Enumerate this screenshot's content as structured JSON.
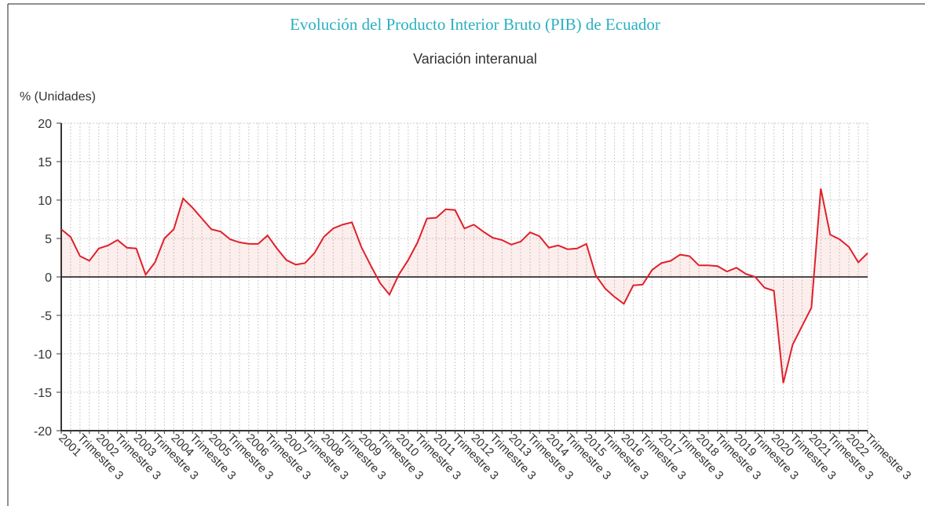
{
  "chart_data": {
    "type": "line",
    "title": "Evolución del Producto Interior Bruto (PIB) de Ecuador",
    "subtitle": "Variación interanual",
    "y_label": "% (Unidades)",
    "categories": [
      "2001",
      null,
      "Trimestre 3",
      null,
      "2002",
      null,
      "Trimestre 3",
      null,
      "2003",
      null,
      "Trimestre 3",
      null,
      "2004",
      null,
      "Trimestre 3",
      null,
      "2005",
      null,
      "Trimestre 3",
      null,
      "2006",
      null,
      "Trimestre 3",
      null,
      "2007",
      null,
      "Trimestre 3",
      null,
      "2008",
      null,
      "Trimestre 3",
      null,
      "2009",
      null,
      "Trimestre 3",
      null,
      "2010",
      null,
      "Trimestre 3",
      null,
      "2011",
      null,
      "Trimestre 3",
      null,
      "2012",
      null,
      "Trimestre 3",
      null,
      "2013",
      null,
      "Trimestre 3",
      null,
      "2014",
      null,
      "Trimestre 3",
      null,
      "2015",
      null,
      "Trimestre 3",
      null,
      "2016",
      null,
      "Trimestre 3",
      null,
      "2017",
      null,
      "Trimestre 3",
      null,
      "2018",
      null,
      "Trimestre 3",
      null,
      "2019",
      null,
      "Trimestre 3",
      null,
      "2020",
      null,
      "Trimestre 3",
      null,
      "2021",
      null,
      "Trimestre 3",
      null,
      "2022",
      null,
      "Trimestre 3"
    ],
    "series": [
      {
        "color": "#e0202a",
        "values": [
          6.2,
          5.2,
          2.7,
          2.1,
          3.7,
          4.1,
          4.8,
          3.8,
          3.7,
          0.3,
          1.9,
          5.0,
          6.2,
          10.2,
          9.0,
          7.6,
          6.2,
          5.9,
          4.9,
          4.5,
          4.3,
          4.3,
          5.4,
          3.7,
          2.2,
          1.6,
          1.8,
          3.1,
          5.2,
          6.3,
          6.8,
          7.1,
          3.9,
          1.5,
          -0.8,
          -2.3,
          0.3,
          2.2,
          4.5,
          7.6,
          7.7,
          8.8,
          8.7,
          6.3,
          6.8,
          5.9,
          5.1,
          4.8,
          4.2,
          4.6,
          5.8,
          5.3,
          3.8,
          4.1,
          3.6,
          3.7,
          4.3,
          0.2,
          -1.5,
          -2.6,
          -3.5,
          -1.1,
          -1.0,
          0.9,
          1.8,
          2.1,
          2.9,
          2.7,
          1.5,
          1.5,
          1.4,
          0.7,
          1.2,
          0.4,
          0.0,
          -1.4,
          -1.8,
          -13.8,
          -8.8,
          -6.4,
          -4.0,
          11.5,
          5.5,
          4.9,
          3.9,
          1.9,
          3.1
        ]
      }
    ],
    "ylim": [
      -20,
      20
    ],
    "yticks": [
      -20,
      -15,
      -10,
      -5,
      0,
      5,
      10,
      15,
      20
    ],
    "grid": true
  }
}
